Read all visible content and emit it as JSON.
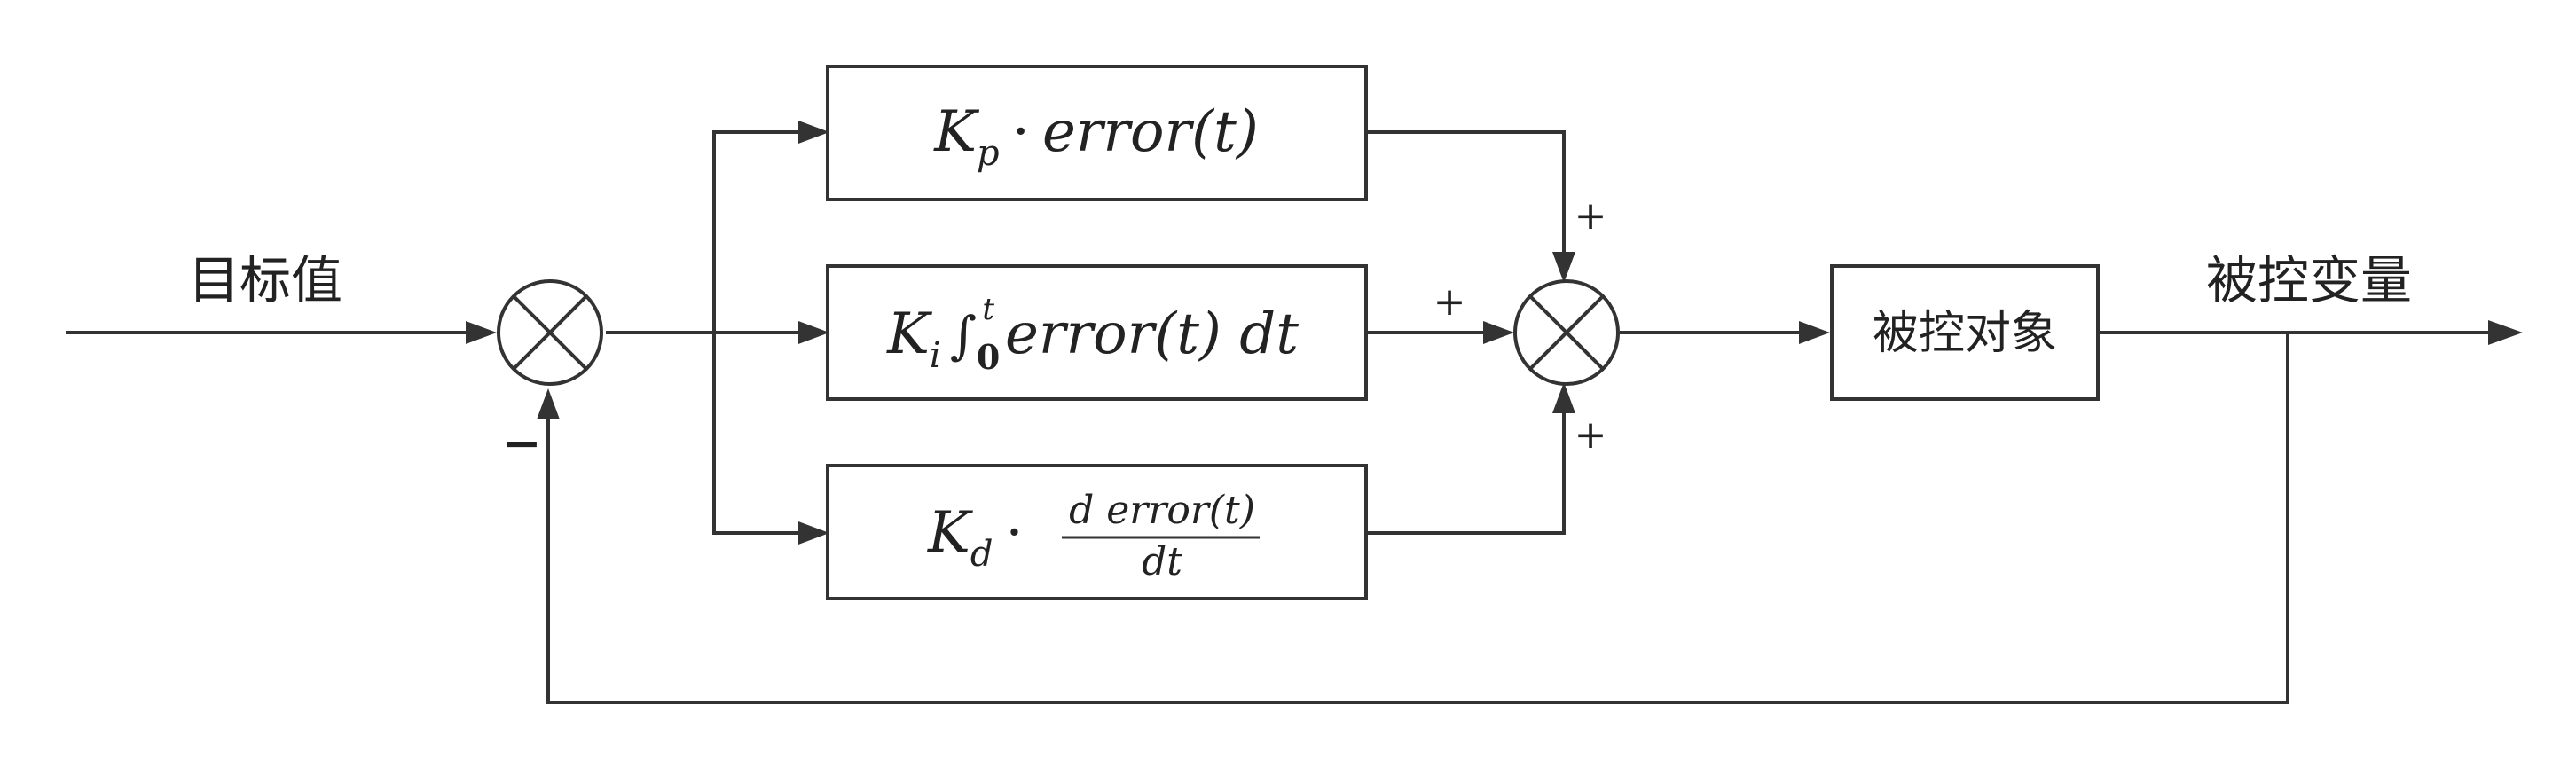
{
  "labels": {
    "setpoint": "目标值",
    "controlled_variable": "被控变量",
    "plant": "被控对象"
  },
  "blocks": {
    "proportional": {
      "gain": "K",
      "gain_sub": "p",
      "dot": "·",
      "expr": "error(t)"
    },
    "integral": {
      "gain": "K",
      "gain_sub": "i",
      "integral_sign": "∫",
      "lower": "0",
      "upper": "t",
      "expr": "error(t) dt"
    },
    "derivative": {
      "gain": "K",
      "gain_sub": "d",
      "dot": "·",
      "numerator": "d error(t)",
      "denominator": "dt"
    }
  },
  "signs": {
    "feedback_minus": "−",
    "sum_top": "+",
    "sum_left": "+",
    "sum_bottom": "+"
  }
}
